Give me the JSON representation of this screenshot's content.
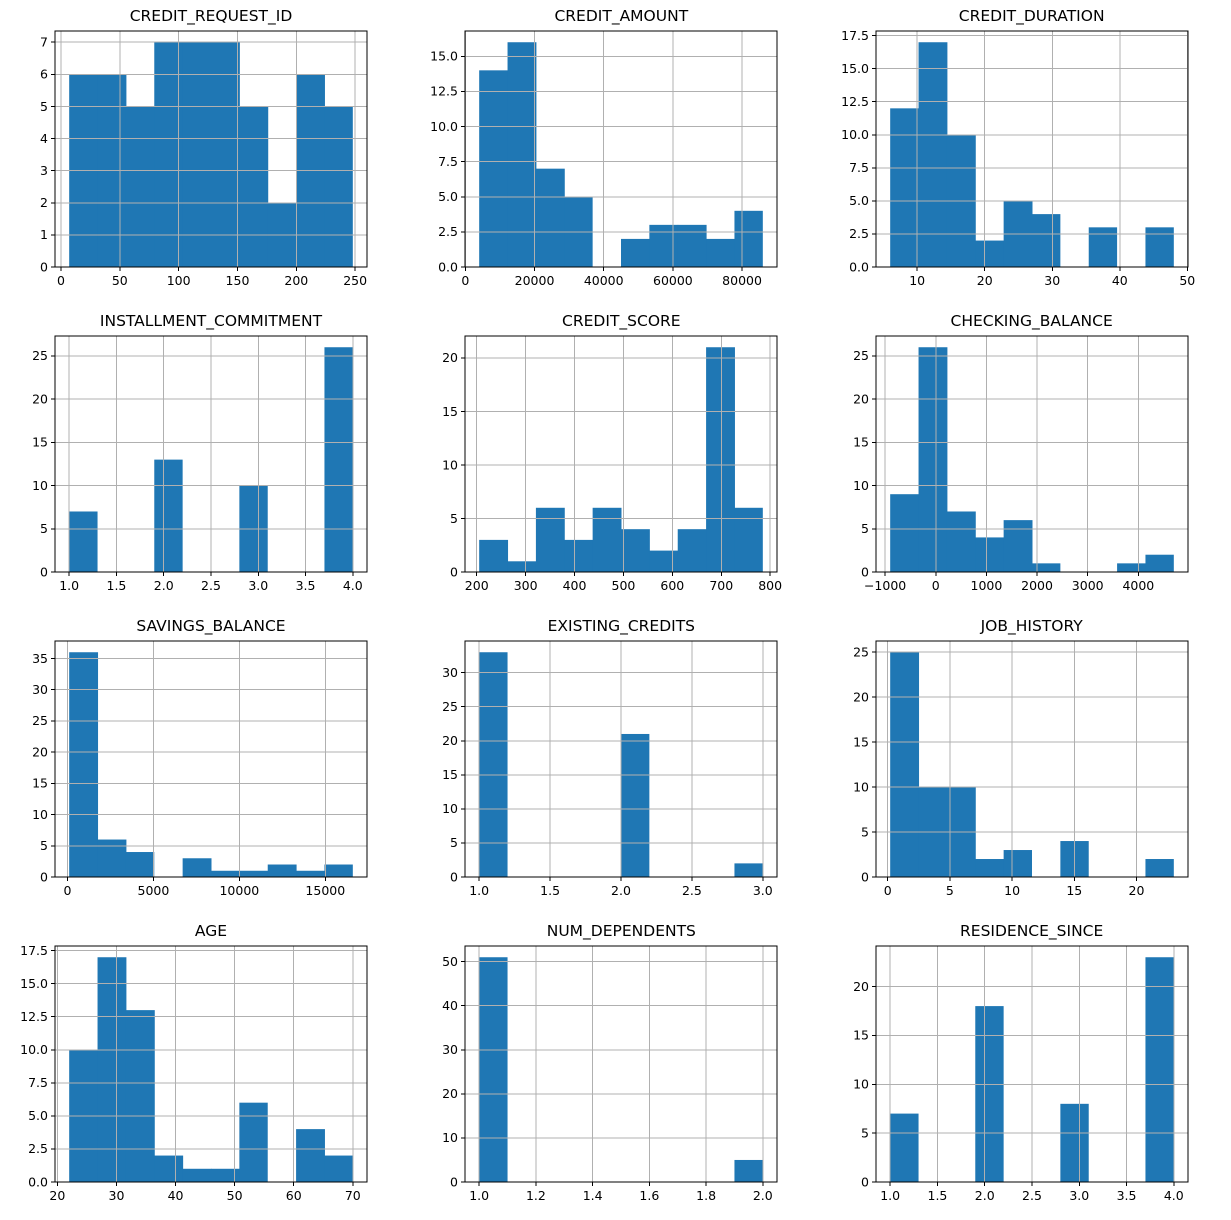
{
  "colors": {
    "bar": "#1f77b4",
    "grid": "#b0b0b0",
    "spine": "#000000",
    "text": "#000000",
    "background": "#ffffff"
  },
  "chart_data": [
    {
      "type": "bar",
      "subtype": "histogram",
      "title": "CREDIT_REQUEST_ID",
      "bin_start": 7,
      "bin_end": 248,
      "counts": [
        6,
        6,
        5,
        7,
        7,
        7,
        5,
        2,
        6,
        5
      ],
      "xlim": [
        -5.05,
        260.05
      ],
      "ylim": [
        0,
        7.35
      ],
      "xticks": [
        0,
        50,
        100,
        150,
        200,
        250
      ],
      "xtick_labels": [
        "0",
        "50",
        "100",
        "150",
        "200",
        "250"
      ],
      "yticks": [
        0,
        1,
        2,
        3,
        4,
        5,
        6,
        7
      ],
      "ytick_labels": [
        "0",
        "1",
        "2",
        "3",
        "4",
        "5",
        "6",
        "7"
      ],
      "xlabel": "",
      "ylabel": "",
      "grid": true,
      "legend": false
    },
    {
      "type": "bar",
      "subtype": "histogram",
      "title": "CREDIT_AMOUNT",
      "bin_start": 4000,
      "bin_end": 86000,
      "counts": [
        14,
        16,
        7,
        5,
        0,
        2,
        3,
        3,
        2,
        4
      ],
      "xlim": [
        -100,
        90100
      ],
      "ylim": [
        0,
        16.8
      ],
      "xticks": [
        0,
        20000,
        40000,
        60000,
        80000
      ],
      "xtick_labels": [
        "0",
        "20000",
        "40000",
        "60000",
        "80000"
      ],
      "yticks": [
        0,
        2.5,
        5,
        7.5,
        10,
        12.5,
        15
      ],
      "ytick_labels": [
        "0.0",
        "2.5",
        "5.0",
        "7.5",
        "10.0",
        "12.5",
        "15.0"
      ],
      "xlabel": "",
      "ylabel": "",
      "grid": true,
      "legend": false
    },
    {
      "type": "bar",
      "subtype": "histogram",
      "title": "CREDIT_DURATION",
      "bin_start": 6,
      "bin_end": 48,
      "counts": [
        12,
        17,
        10,
        2,
        5,
        4,
        0,
        3,
        0,
        3
      ],
      "xlim": [
        3.9,
        50.1
      ],
      "ylim": [
        0,
        17.85
      ],
      "xticks": [
        10,
        20,
        30,
        40,
        50
      ],
      "xtick_labels": [
        "10",
        "20",
        "30",
        "40",
        "50"
      ],
      "yticks": [
        0,
        2.5,
        5,
        7.5,
        10,
        12.5,
        15,
        17.5
      ],
      "ytick_labels": [
        "0.0",
        "2.5",
        "5.0",
        "7.5",
        "10.0",
        "12.5",
        "15.0",
        "17.5"
      ],
      "xlabel": "",
      "ylabel": "",
      "grid": true,
      "legend": false
    },
    {
      "type": "bar",
      "subtype": "histogram",
      "title": "INSTALLMENT_COMMITMENT",
      "bin_start": 1.0,
      "bin_end": 4.0,
      "counts": [
        7,
        0,
        0,
        13,
        0,
        0,
        10,
        0,
        0,
        26
      ],
      "xlim": [
        0.85,
        4.15
      ],
      "ylim": [
        0,
        27.3
      ],
      "xticks": [
        1.0,
        1.5,
        2.0,
        2.5,
        3.0,
        3.5,
        4.0
      ],
      "xtick_labels": [
        "1.0",
        "1.5",
        "2.0",
        "2.5",
        "3.0",
        "3.5",
        "4.0"
      ],
      "yticks": [
        0,
        5,
        10,
        15,
        20,
        25
      ],
      "ytick_labels": [
        "0",
        "5",
        "10",
        "15",
        "20",
        "25"
      ],
      "xlabel": "",
      "ylabel": "",
      "grid": true,
      "legend": false
    },
    {
      "type": "bar",
      "subtype": "histogram",
      "title": "CREDIT_SCORE",
      "bin_start": 205,
      "bin_end": 785,
      "counts": [
        3,
        1,
        6,
        3,
        6,
        4,
        2,
        4,
        21,
        6
      ],
      "xlim": [
        176,
        814
      ],
      "ylim": [
        0,
        22.05
      ],
      "xticks": [
        200,
        300,
        400,
        500,
        600,
        700,
        800
      ],
      "xtick_labels": [
        "200",
        "300",
        "400",
        "500",
        "600",
        "700",
        "800"
      ],
      "yticks": [
        0,
        5,
        10,
        15,
        20
      ],
      "ytick_labels": [
        "0",
        "5",
        "10",
        "15",
        "20"
      ],
      "xlabel": "",
      "ylabel": "",
      "grid": true,
      "legend": false
    },
    {
      "type": "bar",
      "subtype": "histogram",
      "title": "CHECKING_BALANCE",
      "bin_start": -900,
      "bin_end": 4700,
      "counts": [
        9,
        26,
        7,
        4,
        6,
        1,
        0,
        0,
        1,
        2
      ],
      "xlim": [
        -1180,
        4980
      ],
      "ylim": [
        0,
        27.3
      ],
      "xticks": [
        -1000,
        0,
        1000,
        2000,
        3000,
        4000
      ],
      "xtick_labels": [
        "−1000",
        "0",
        "1000",
        "2000",
        "3000",
        "4000"
      ],
      "yticks": [
        0,
        5,
        10,
        15,
        20,
        25
      ],
      "ytick_labels": [
        "0",
        "5",
        "10",
        "15",
        "20",
        "25"
      ],
      "xlabel": "",
      "ylabel": "",
      "grid": true,
      "legend": false
    },
    {
      "type": "bar",
      "subtype": "histogram",
      "title": "SAVINGS_BALANCE",
      "bin_start": 100,
      "bin_end": 16600,
      "counts": [
        36,
        6,
        4,
        0,
        3,
        1,
        1,
        2,
        1,
        2
      ],
      "xlim": [
        -725,
        17425
      ],
      "ylim": [
        0,
        37.8
      ],
      "xticks": [
        0,
        5000,
        10000,
        15000
      ],
      "xtick_labels": [
        "0",
        "5000",
        "10000",
        "15000"
      ],
      "yticks": [
        0,
        5,
        10,
        15,
        20,
        25,
        30,
        35
      ],
      "ytick_labels": [
        "0",
        "5",
        "10",
        "15",
        "20",
        "25",
        "30",
        "35"
      ],
      "xlabel": "",
      "ylabel": "",
      "grid": true,
      "legend": false
    },
    {
      "type": "bar",
      "subtype": "histogram",
      "title": "EXISTING_CREDITS",
      "bin_start": 1.0,
      "bin_end": 3.0,
      "counts": [
        33,
        0,
        0,
        0,
        0,
        21,
        0,
        0,
        0,
        2
      ],
      "xlim": [
        0.9,
        3.1
      ],
      "ylim": [
        0,
        34.65
      ],
      "xticks": [
        1.0,
        1.5,
        2.0,
        2.5,
        3.0
      ],
      "xtick_labels": [
        "1.0",
        "1.5",
        "2.0",
        "2.5",
        "3.0"
      ],
      "yticks": [
        0,
        5,
        10,
        15,
        20,
        25,
        30
      ],
      "ytick_labels": [
        "0",
        "5",
        "10",
        "15",
        "20",
        "25",
        "30"
      ],
      "xlabel": "",
      "ylabel": "",
      "grid": true,
      "legend": false
    },
    {
      "type": "bar",
      "subtype": "histogram",
      "title": "JOB_HISTORY",
      "bin_start": 0.2,
      "bin_end": 23,
      "counts": [
        25,
        10,
        10,
        2,
        3,
        0,
        4,
        0,
        0,
        2
      ],
      "xlim": [
        -0.94,
        24.14
      ],
      "ylim": [
        0,
        26.25
      ],
      "xticks": [
        0,
        5,
        10,
        15,
        20
      ],
      "xtick_labels": [
        "0",
        "5",
        "10",
        "15",
        "20"
      ],
      "yticks": [
        0,
        5,
        10,
        15,
        20,
        25
      ],
      "ytick_labels": [
        "0",
        "5",
        "10",
        "15",
        "20",
        "25"
      ],
      "xlabel": "",
      "ylabel": "",
      "grid": true,
      "legend": false
    },
    {
      "type": "bar",
      "subtype": "histogram",
      "title": "AGE",
      "bin_start": 22,
      "bin_end": 70,
      "counts": [
        10,
        17,
        13,
        2,
        1,
        1,
        6,
        0,
        4,
        2
      ],
      "xlim": [
        19.6,
        72.4
      ],
      "ylim": [
        0,
        17.85
      ],
      "xticks": [
        20,
        30,
        40,
        50,
        60,
        70
      ],
      "xtick_labels": [
        "20",
        "30",
        "40",
        "50",
        "60",
        "70"
      ],
      "yticks": [
        0,
        2.5,
        5,
        7.5,
        10,
        12.5,
        15,
        17.5
      ],
      "ytick_labels": [
        "0.0",
        "2.5",
        "5.0",
        "7.5",
        "10.0",
        "12.5",
        "15.0",
        "17.5"
      ],
      "xlabel": "",
      "ylabel": "",
      "grid": true,
      "legend": false
    },
    {
      "type": "bar",
      "subtype": "histogram",
      "title": "NUM_DEPENDENTS",
      "bin_start": 1.0,
      "bin_end": 2.0,
      "counts": [
        51,
        0,
        0,
        0,
        0,
        0,
        0,
        0,
        0,
        5
      ],
      "xlim": [
        0.95,
        2.05
      ],
      "ylim": [
        0,
        53.55
      ],
      "xticks": [
        1.0,
        1.2,
        1.4,
        1.6,
        1.8,
        2.0
      ],
      "xtick_labels": [
        "1.0",
        "1.2",
        "1.4",
        "1.6",
        "1.8",
        "2.0"
      ],
      "yticks": [
        0,
        10,
        20,
        30,
        40,
        50
      ],
      "ytick_labels": [
        "0",
        "10",
        "20",
        "30",
        "40",
        "50"
      ],
      "xlabel": "",
      "ylabel": "",
      "grid": true,
      "legend": false
    },
    {
      "type": "bar",
      "subtype": "histogram",
      "title": "RESIDENCE_SINCE",
      "bin_start": 1.0,
      "bin_end": 4.0,
      "counts": [
        7,
        0,
        0,
        18,
        0,
        0,
        8,
        0,
        0,
        23
      ],
      "xlim": [
        0.85,
        4.15
      ],
      "ylim": [
        0,
        24.15
      ],
      "xticks": [
        1.0,
        1.5,
        2.0,
        2.5,
        3.0,
        3.5,
        4.0
      ],
      "xtick_labels": [
        "1.0",
        "1.5",
        "2.0",
        "2.5",
        "3.0",
        "3.5",
        "4.0"
      ],
      "yticks": [
        0,
        5,
        10,
        15,
        20
      ],
      "ytick_labels": [
        "0",
        "5",
        "10",
        "15",
        "20"
      ],
      "xlabel": "",
      "ylabel": "",
      "grid": true,
      "legend": false
    }
  ]
}
